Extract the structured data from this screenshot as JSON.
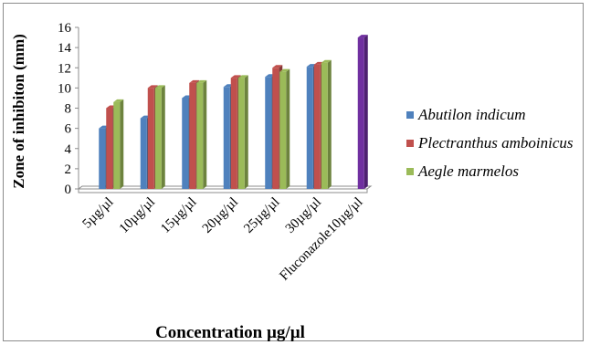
{
  "chart_data": {
    "type": "bar",
    "xlabel": "Concentration µg/µl",
    "ylabel": "Zone of inhibiton (mm)",
    "ylim": [
      0,
      16
    ],
    "yticks": [
      0,
      2,
      4,
      6,
      8,
      10,
      12,
      14,
      16
    ],
    "categories": [
      "5µg/µl",
      "10µg/µl",
      "15µg/µl",
      "20µg/µl",
      "25µg/µl",
      "30µg/µl",
      "Fluconazole10µg/µl"
    ],
    "series": [
      {
        "name": "Abutilon indicum",
        "color": "#4f81bd",
        "values": [
          6.0,
          7.0,
          9.0,
          10.1,
          11.1,
          12.1,
          null
        ]
      },
      {
        "name": "Plectranthus amboinicus",
        "color": "#c0504d",
        "values": [
          8.0,
          10.0,
          10.5,
          11.0,
          12.0,
          12.3,
          null
        ]
      },
      {
        "name": "Aegle marmelos",
        "color": "#9bbb59",
        "values": [
          8.6,
          10.0,
          10.5,
          11.0,
          11.6,
          12.5,
          null
        ]
      },
      {
        "name": "",
        "color": "#7030a0",
        "values": [
          null,
          null,
          null,
          null,
          null,
          null,
          15.0
        ]
      }
    ],
    "legend_position": "right",
    "grid": false
  }
}
